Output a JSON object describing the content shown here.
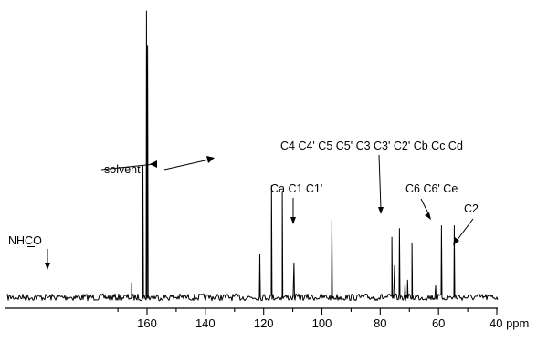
{
  "chart_data": {
    "type": "line",
    "title": "",
    "xlabel": "",
    "ylabel": "",
    "x_unit": "ppm",
    "x_reversed": true,
    "xlim": [
      170,
      40
    ],
    "ylim": [
      0,
      1
    ],
    "x_ticks": [
      160,
      140,
      120,
      100,
      80,
      60,
      40
    ],
    "tick_labels": [
      "160",
      "140",
      "120",
      "100",
      "80",
      "60",
      "40 ppm"
    ],
    "grid": false,
    "legend": "none",
    "baseline_noise": 0.012,
    "series": [
      {
        "peaks": [
          {
            "ppm": 165.3,
            "height": 0.05
          },
          {
            "ppm": 161.4,
            "height": 0.46
          },
          {
            "ppm": 160.2,
            "height": 1.0
          },
          {
            "ppm": 159.8,
            "height": 0.88
          },
          {
            "ppm": 121.3,
            "height": 0.15
          },
          {
            "ppm": 117.3,
            "height": 0.39
          },
          {
            "ppm": 113.6,
            "height": 0.37
          },
          {
            "ppm": 109.6,
            "height": 0.12
          },
          {
            "ppm": 96.6,
            "height": 0.27
          },
          {
            "ppm": 76.0,
            "height": 0.21
          },
          {
            "ppm": 75.1,
            "height": 0.11
          },
          {
            "ppm": 73.4,
            "height": 0.24
          },
          {
            "ppm": 71.5,
            "height": 0.05
          },
          {
            "ppm": 70.6,
            "height": 0.06
          },
          {
            "ppm": 69.1,
            "height": 0.19
          },
          {
            "ppm": 61.0,
            "height": 0.04
          },
          {
            "ppm": 59.0,
            "height": 0.25
          },
          {
            "ppm": 54.6,
            "height": 0.25
          }
        ]
      }
    ],
    "annotations": [
      {
        "text": "NHCO",
        "underline": "C",
        "at_ppm": 165.3
      },
      {
        "text": "solvent",
        "at_ppm": 160.2
      },
      {
        "text": "solvent",
        "at_ppm": 117.3
      },
      {
        "text": "Ca C1 C1'",
        "at_ppm": 96.6
      },
      {
        "text": "C4 C4' C5 C5' C3 C3' C2' Cb Cc Cd",
        "at_ppm": 73.0
      },
      {
        "text": "C6 C6' Ce",
        "at_ppm": 59.0
      },
      {
        "text": "C2",
        "at_ppm": 54.6
      }
    ],
    "labels": {
      "nhco": "NHCO",
      "solvent": "solvent",
      "ca_c1": "Ca C1 C1'",
      "c4_group": "C4 C4' C5 C5' C3 C3' C2' Cb Cc Cd",
      "c6_group": "C6 C6' Ce",
      "c2": "C2"
    }
  }
}
